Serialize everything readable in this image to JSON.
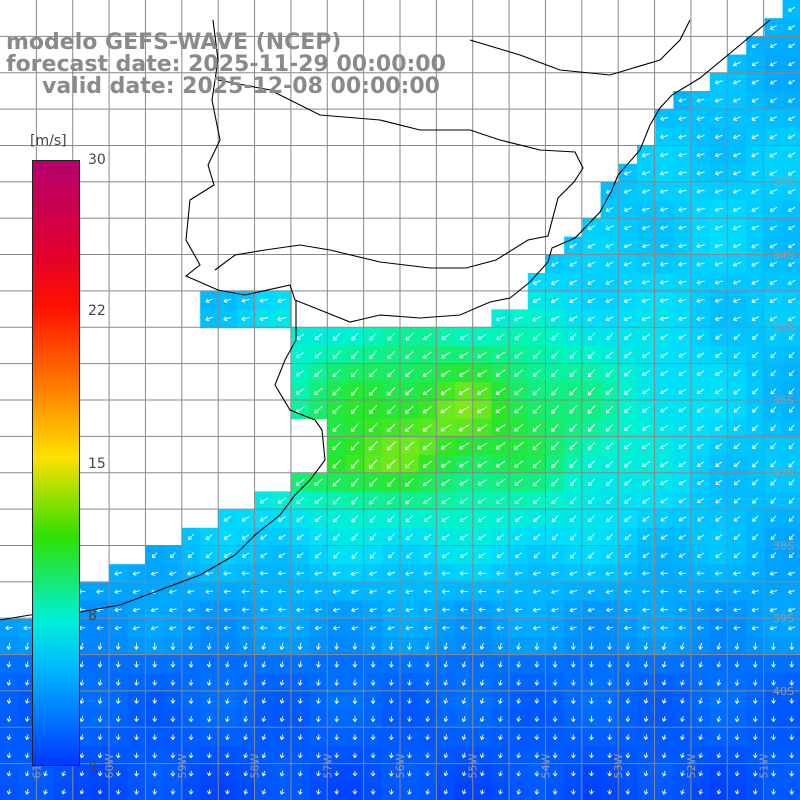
{
  "header": {
    "model": "modelo GEFS-WAVE (NCEP)",
    "forecast": "forecast date: 2025-11-29 00:00:00",
    "valid": "valid date: 2025-12-08 00:00:00"
  },
  "colorbar": {
    "units": "[m/s]",
    "ticks": [
      "30",
      "22",
      "15",
      "8",
      "0"
    ],
    "tick_values": [
      30,
      22,
      15,
      8,
      0
    ],
    "range": [
      0,
      30
    ]
  },
  "map": {
    "lon_range": [
      -61.5,
      -50.5
    ],
    "lat_range": [
      -41.5,
      -30.5
    ],
    "lat_labels": [
      "33S",
      "34S",
      "35S",
      "36S",
      "37S",
      "38S",
      "39S",
      "40S"
    ],
    "lat_values": [
      -33,
      -34,
      -35,
      -36,
      -37,
      -38,
      -39,
      -40
    ],
    "lon_labels": [
      "61W",
      "60W",
      "59W",
      "58W",
      "57W",
      "56W",
      "55W",
      "54W",
      "53W",
      "52W",
      "51W"
    ],
    "lon_values": [
      -61,
      -60,
      -59,
      -58,
      -57,
      -56,
      -55,
      -54,
      -53,
      -52,
      -51
    ],
    "colors": {
      "land": "#ffffff",
      "grid": "#888888",
      "arrows": "#ffffff",
      "title": "#8a8a8a"
    }
  }
}
